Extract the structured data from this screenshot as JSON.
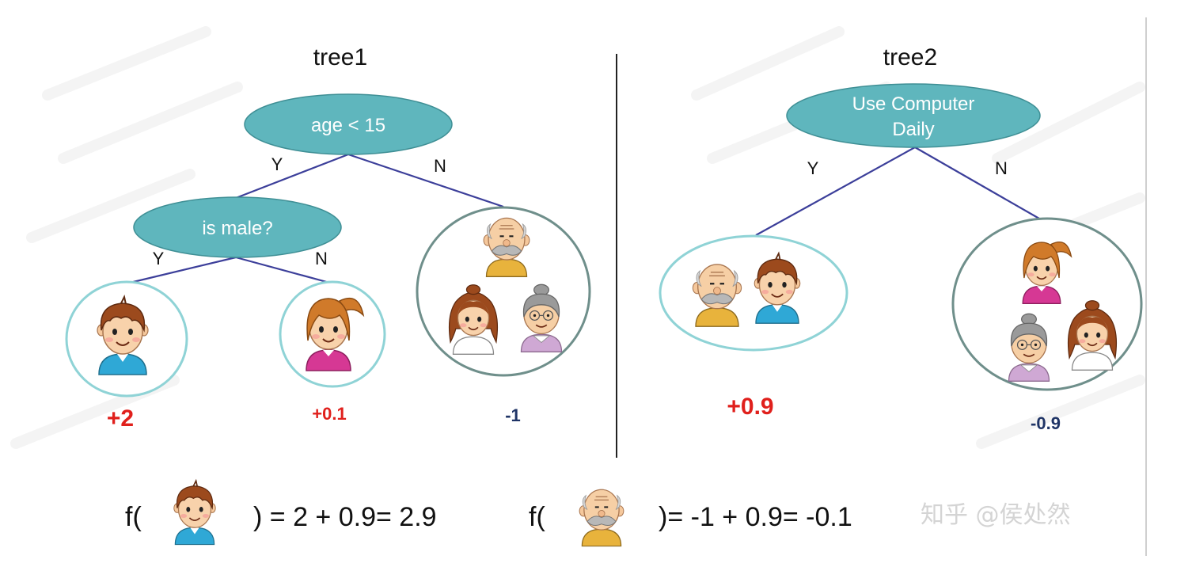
{
  "trees": {
    "tree1": {
      "title": "tree1",
      "root": "age < 15",
      "root_yes": "Y",
      "root_no": "N",
      "child": "is male?",
      "child_yes": "Y",
      "child_no": "N",
      "leaves": [
        "+2",
        "+0.1",
        "-1"
      ]
    },
    "tree2": {
      "title": "tree2",
      "root_line1": "Use Computer",
      "root_line2": "Daily",
      "root_yes": "Y",
      "root_no": "N",
      "leaves": [
        "+0.9",
        "-0.9"
      ]
    }
  },
  "formulas": {
    "boy_prefix": "f(",
    "boy_suffix": ") = 2 + 0.9= 2.9",
    "grandpa_prefix": "f(",
    "grandpa_suffix": ")= -1 + 0.9= -0.1"
  },
  "watermark": "知乎 @侯处然",
  "colors": {
    "node_fill": "#5fb6bd",
    "edge": "#3c3f9a",
    "leaf_ring": "#8fd3d6",
    "leaf_ring_dark": "#6f8f8b",
    "positive": "#e0201c",
    "negative": "#1f3466"
  },
  "icons": [
    "boy-icon",
    "girl-icon",
    "grandpa-icon",
    "woman-icon",
    "grandma-icon"
  ]
}
